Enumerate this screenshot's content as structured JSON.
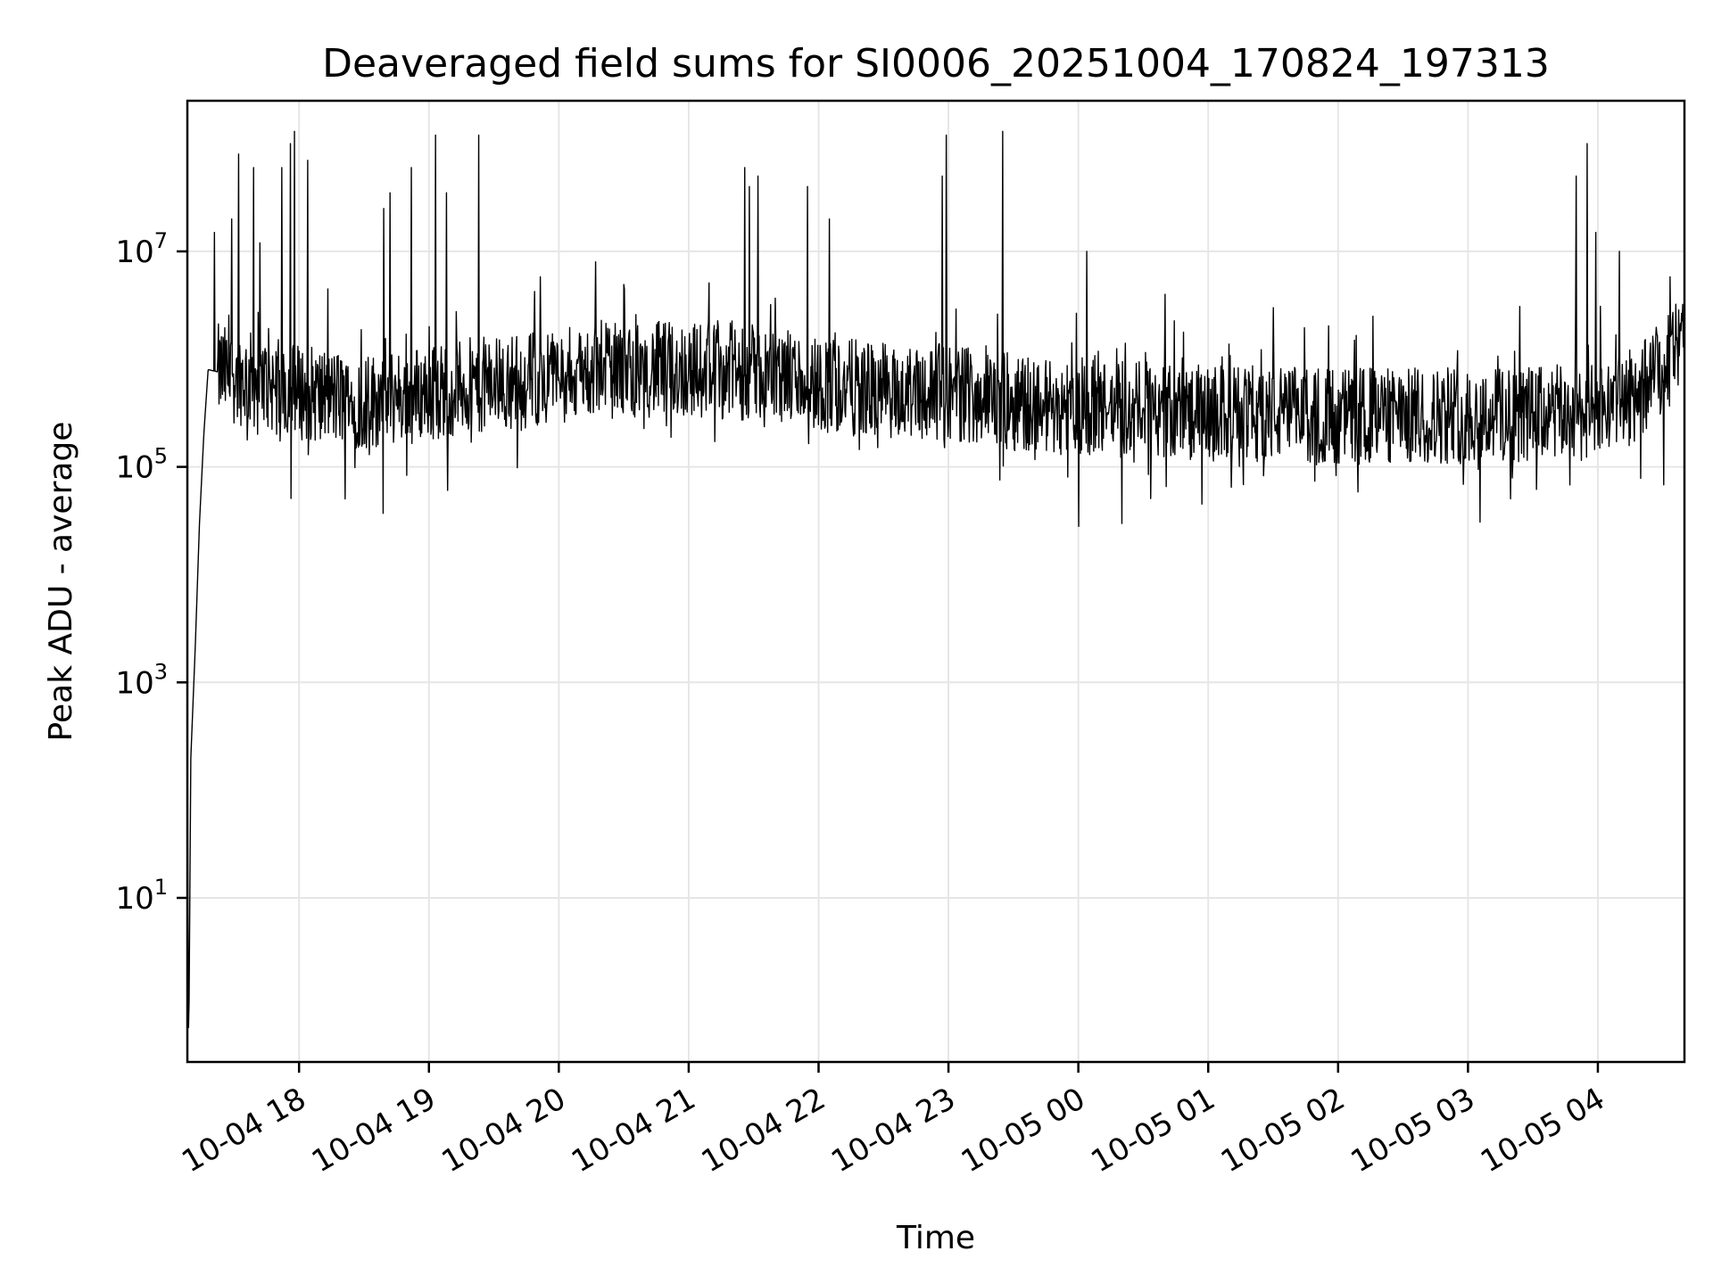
{
  "chart_data": {
    "type": "line",
    "title": "Deaveraged field sums for SI0006_20251004_170824_197313",
    "xlabel": "Time",
    "ylabel": "Peak ADU - average",
    "yscale": "log",
    "ylim": [
      0.3,
      250000000
    ],
    "xlim": [
      "2025-10-04 17:08:24",
      "2025-10-05 04:40:00"
    ],
    "grid": true,
    "color": "#000000",
    "x_ticks": [
      {
        "label": "10-04 18",
        "t": "2025-10-04 18:00"
      },
      {
        "label": "10-04 19",
        "t": "2025-10-04 19:00"
      },
      {
        "label": "10-04 20",
        "t": "2025-10-04 20:00"
      },
      {
        "label": "10-04 21",
        "t": "2025-10-04 21:00"
      },
      {
        "label": "10-04 22",
        "t": "2025-10-04 22:00"
      },
      {
        "label": "10-04 23",
        "t": "2025-10-04 23:00"
      },
      {
        "label": "10-05 00",
        "t": "2025-10-05 00:00"
      },
      {
        "label": "10-05 01",
        "t": "2025-10-05 01:00"
      },
      {
        "label": "10-05 02",
        "t": "2025-10-05 02:00"
      },
      {
        "label": "10-05 03",
        "t": "2025-10-05 03:00"
      },
      {
        "label": "10-05 04",
        "t": "2025-10-05 04:00"
      }
    ],
    "y_ticks": [
      {
        "base": "10",
        "exp": "1",
        "value": 10
      },
      {
        "base": "10",
        "exp": "3",
        "value": 1000
      },
      {
        "base": "10",
        "exp": "5",
        "value": 100000
      },
      {
        "base": "10",
        "exp": "7",
        "value": 10000000
      }
    ],
    "series": [
      {
        "baseline": [
          [
            "2025-10-04 17:08:24",
            200
          ],
          [
            "2025-10-04 17:09:00",
            0.3
          ],
          [
            "2025-10-04 17:10:00",
            200
          ],
          [
            "2025-10-04 17:12:00",
            2000
          ],
          [
            "2025-10-04 17:14:00",
            30000
          ],
          [
            "2025-10-04 17:16:00",
            200000
          ],
          [
            "2025-10-04 17:18:00",
            800000
          ],
          [
            "2025-10-04 17:30:00",
            700000
          ],
          [
            "2025-10-04 18:00:00",
            500000
          ],
          [
            "2025-10-04 18:30:00",
            400000
          ],
          [
            "2025-10-04 19:00:00",
            500000
          ],
          [
            "2025-10-04 19:30:00",
            600000
          ],
          [
            "2025-10-04 20:00:00",
            700000
          ],
          [
            "2025-10-04 20:30:00",
            800000
          ],
          [
            "2025-10-04 21:00:00",
            800000
          ],
          [
            "2025-10-04 21:30:00",
            750000
          ],
          [
            "2025-10-04 22:00:00",
            600000
          ],
          [
            "2025-10-04 22:30:00",
            500000
          ],
          [
            "2025-10-04 23:00:00",
            500000
          ],
          [
            "2025-10-04 23:30:00",
            400000
          ],
          [
            "2025-10-05 00:00:00",
            350000
          ],
          [
            "2025-10-05 01:00:00",
            320000
          ],
          [
            "2025-10-05 02:00:00",
            300000
          ],
          [
            "2025-10-05 03:00:00",
            300000
          ],
          [
            "2025-10-05 04:00:00",
            320000
          ],
          [
            "2025-10-05 04:20:00",
            500000
          ],
          [
            "2025-10-05 04:40:00",
            1500000
          ]
        ],
        "spikes": [
          [
            "2025-10-04 17:21:00",
            15000000
          ],
          [
            "2025-10-04 17:29:00",
            20000000
          ],
          [
            "2025-10-04 17:32:00",
            80000000
          ],
          [
            "2025-10-04 17:39:00",
            60000000
          ],
          [
            "2025-10-04 17:42:00",
            12000000
          ],
          [
            "2025-10-04 17:52:00",
            60000000
          ],
          [
            "2025-10-04 17:56:00",
            100000000
          ],
          [
            "2025-10-04 17:58:00",
            130000000
          ],
          [
            "2025-10-04 18:04:00",
            70000000
          ],
          [
            "2025-10-04 18:39:00",
            25000000
          ],
          [
            "2025-10-04 18:42:00",
            35000000
          ],
          [
            "2025-10-04 18:52:00",
            60000000
          ],
          [
            "2025-10-04 19:03:00",
            120000000
          ],
          [
            "2025-10-04 19:08:00",
            35000000
          ],
          [
            "2025-10-04 19:23:00",
            120000000
          ],
          [
            "2025-10-04 20:17:00",
            8000000
          ],
          [
            "2025-10-04 21:26:00",
            60000000
          ],
          [
            "2025-10-04 21:28:00",
            40000000
          ],
          [
            "2025-10-04 21:32:00",
            50000000
          ],
          [
            "2025-10-04 21:55:00",
            40000000
          ],
          [
            "2025-10-04 22:05:00",
            20000000
          ],
          [
            "2025-10-04 22:57:00",
            50000000
          ],
          [
            "2025-10-04 22:59:00",
            120000000
          ],
          [
            "2025-10-04 23:25:00",
            130000000
          ],
          [
            "2025-10-05 00:04:00",
            10000000
          ],
          [
            "2025-10-05 00:40:00",
            4000000
          ],
          [
            "2025-10-05 01:30:00",
            3000000
          ],
          [
            "2025-10-05 02:16:00",
            2500000
          ],
          [
            "2025-10-05 03:50:00",
            50000000
          ],
          [
            "2025-10-05 03:55:00",
            100000000
          ],
          [
            "2025-10-05 04:10:00",
            10000000
          ],
          [
            "2025-10-05 03:59:00",
            15000000
          ]
        ]
      }
    ]
  }
}
